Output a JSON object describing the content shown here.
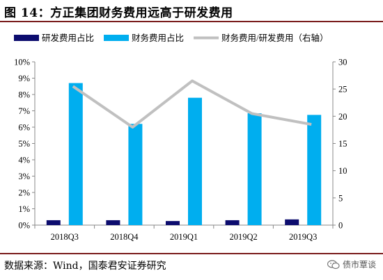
{
  "figure": {
    "title": "图 14：方正集团财务费用远高于研发费用",
    "source": "数据来源：Wind，国泰君安证券研究",
    "watermark": "债市覃谈"
  },
  "colors": {
    "rnd_bar": "#0c0c6e",
    "fin_bar": "#00aeef",
    "ratio_line": "#c0c0c0",
    "rule": "#7a1c1c",
    "axis": "#888888"
  },
  "chart_data": {
    "type": "bar",
    "categories": [
      "2018Q3",
      "2018Q4",
      "2019Q1",
      "2019Q2",
      "2019Q3"
    ],
    "series": [
      {
        "name": "研发费用占比",
        "type": "bar",
        "axis": "left",
        "values": [
          0.3,
          0.3,
          0.25,
          0.3,
          0.35
        ]
      },
      {
        "name": "财务费用占比",
        "type": "bar",
        "axis": "left",
        "values": [
          8.7,
          6.2,
          7.8,
          6.85,
          6.75
        ]
      },
      {
        "name": "财务费用/研发费用（右轴）",
        "type": "line",
        "axis": "right",
        "values": [
          25.5,
          18,
          26.5,
          20.5,
          18.5
        ]
      }
    ],
    "y_left": {
      "min": 0,
      "max": 10,
      "ticks": [
        "0%",
        "1%",
        "2%",
        "3%",
        "4%",
        "5%",
        "6%",
        "7%",
        "8%",
        "9%",
        "10%"
      ]
    },
    "y_right": {
      "min": 0,
      "max": 30,
      "ticks": [
        "0",
        "5",
        "10",
        "15",
        "20",
        "25",
        "30"
      ]
    },
    "legend_position": "top",
    "grid": false
  }
}
